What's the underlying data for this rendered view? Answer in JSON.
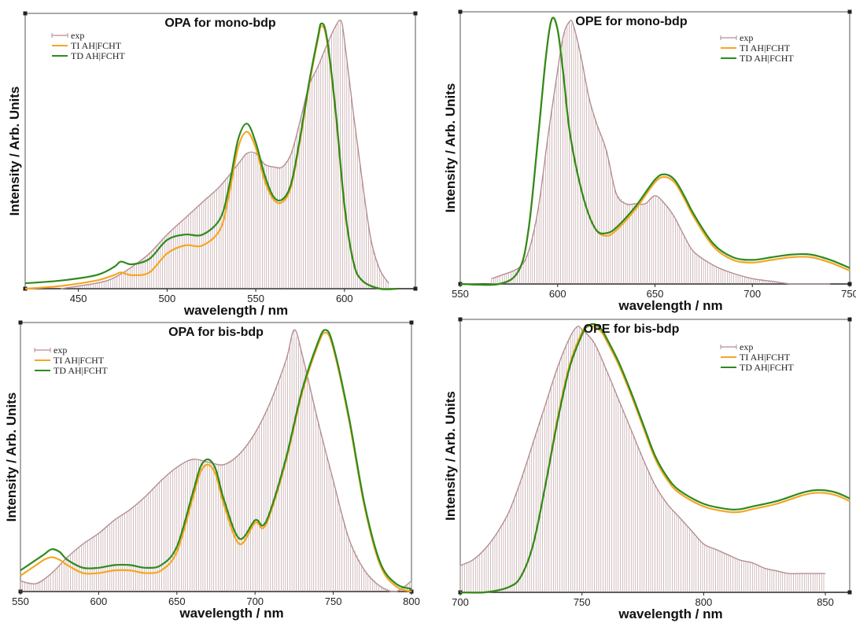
{
  "colors": {
    "exp": "#b48e92",
    "ti": "#f5a623",
    "td": "#2e8b1e"
  },
  "chart_data": [
    {
      "type": "line",
      "title": "OPA for mono-bdp",
      "xlabel": "wavelength / nm",
      "ylabel": "Intensity / Arb. Units",
      "xlim": [
        420,
        640
      ],
      "xticks": [
        450,
        500,
        550,
        600
      ],
      "ylim": [
        0,
        1.0
      ],
      "legend_position": "top-left",
      "series": [
        {
          "name": "exp",
          "style": "sticks",
          "x": [
            440,
            460,
            470,
            480,
            490,
            500,
            510,
            520,
            530,
            540,
            545,
            550,
            555,
            560,
            565,
            570,
            575,
            580,
            585,
            590,
            595,
            598,
            600,
            605,
            610,
            615,
            620,
            625
          ],
          "y": [
            0.0,
            0.02,
            0.04,
            0.08,
            0.13,
            0.2,
            0.26,
            0.32,
            0.38,
            0.46,
            0.5,
            0.5,
            0.46,
            0.45,
            0.45,
            0.5,
            0.62,
            0.75,
            0.82,
            0.9,
            0.97,
            0.99,
            0.92,
            0.65,
            0.4,
            0.18,
            0.07,
            0.02
          ]
        },
        {
          "name": "TI AH|FCHT",
          "x": [
            420,
            440,
            460,
            470,
            474,
            480,
            490,
            500,
            510,
            520,
            530,
            535,
            540,
            545,
            550,
            555,
            560,
            565,
            570,
            575,
            580,
            585,
            587,
            590,
            595,
            600,
            605,
            610,
            620,
            630
          ],
          "y": [
            0.0,
            0.01,
            0.03,
            0.05,
            0.06,
            0.05,
            0.06,
            0.13,
            0.16,
            0.16,
            0.22,
            0.35,
            0.52,
            0.58,
            0.52,
            0.4,
            0.33,
            0.32,
            0.38,
            0.55,
            0.75,
            0.92,
            0.97,
            0.92,
            0.65,
            0.3,
            0.1,
            0.03,
            0.0,
            0.0
          ]
        },
        {
          "name": "TD AH|FCHT",
          "x": [
            420,
            440,
            460,
            470,
            474,
            480,
            490,
            500,
            510,
            520,
            530,
            535,
            540,
            545,
            550,
            555,
            560,
            565,
            570,
            575,
            580,
            585,
            587,
            590,
            595,
            600,
            605,
            610,
            620,
            630
          ],
          "y": [
            0.02,
            0.03,
            0.05,
            0.08,
            0.1,
            0.09,
            0.11,
            0.18,
            0.2,
            0.2,
            0.26,
            0.38,
            0.55,
            0.61,
            0.54,
            0.42,
            0.34,
            0.33,
            0.39,
            0.56,
            0.76,
            0.93,
            0.98,
            0.93,
            0.66,
            0.31,
            0.1,
            0.03,
            0.0,
            0.0
          ]
        }
      ]
    },
    {
      "type": "line",
      "title": "OPE for mono-bdp",
      "xlabel": "wavelength / nm",
      "ylabel": "Intensity / Arb. Units",
      "xlim": [
        550,
        750
      ],
      "xticks": [
        550,
        600,
        650,
        700,
        750
      ],
      "ylim": [
        0,
        1.0
      ],
      "legend_position": "top-right",
      "series": [
        {
          "name": "exp",
          "style": "sticks",
          "x": [
            566,
            570,
            580,
            585,
            590,
            595,
            600,
            603,
            606,
            608,
            612,
            616,
            620,
            625,
            630,
            635,
            640,
            645,
            650,
            655,
            660,
            665,
            670,
            680,
            690,
            700,
            710,
            720,
            730,
            740
          ],
          "y": [
            0.02,
            0.03,
            0.06,
            0.12,
            0.28,
            0.55,
            0.8,
            0.93,
            0.98,
            0.97,
            0.85,
            0.7,
            0.6,
            0.5,
            0.34,
            0.3,
            0.3,
            0.3,
            0.33,
            0.3,
            0.25,
            0.18,
            0.12,
            0.07,
            0.04,
            0.02,
            0.01,
            0.0,
            0.0,
            0.0
          ]
        },
        {
          "name": "TI AH|FCHT",
          "x": [
            550,
            570,
            580,
            585,
            590,
            594,
            597,
            600,
            603,
            606,
            610,
            615,
            620,
            625,
            630,
            640,
            650,
            655,
            660,
            665,
            670,
            680,
            690,
            700,
            710,
            720,
            730,
            740,
            750
          ],
          "y": [
            0.0,
            0.0,
            0.05,
            0.2,
            0.55,
            0.85,
            0.99,
            0.95,
            0.78,
            0.58,
            0.42,
            0.28,
            0.2,
            0.18,
            0.2,
            0.28,
            0.38,
            0.4,
            0.38,
            0.32,
            0.25,
            0.14,
            0.09,
            0.08,
            0.09,
            0.1,
            0.1,
            0.08,
            0.05
          ]
        },
        {
          "name": "TD AH|FCHT",
          "x": [
            550,
            570,
            580,
            585,
            590,
            594,
            597,
            600,
            603,
            606,
            610,
            615,
            620,
            625,
            630,
            640,
            650,
            655,
            660,
            665,
            670,
            680,
            690,
            700,
            710,
            720,
            730,
            740,
            750
          ],
          "y": [
            0.0,
            0.0,
            0.05,
            0.2,
            0.55,
            0.85,
            0.99,
            0.95,
            0.78,
            0.58,
            0.42,
            0.28,
            0.2,
            0.19,
            0.21,
            0.29,
            0.39,
            0.41,
            0.39,
            0.33,
            0.26,
            0.15,
            0.1,
            0.09,
            0.1,
            0.11,
            0.11,
            0.09,
            0.06
          ]
        }
      ]
    },
    {
      "type": "line",
      "title": "OPA for bis-bdp",
      "xlabel": "wavelength / nm",
      "ylabel": "Intensity / Arb. Units",
      "xlim": [
        550,
        800
      ],
      "xticks": [
        550,
        600,
        650,
        700,
        750,
        800
      ],
      "ylim": [
        0,
        1.0
      ],
      "legend_position": "top-left",
      "series": [
        {
          "name": "exp",
          "style": "sticks",
          "x": [
            550,
            560,
            570,
            580,
            590,
            600,
            610,
            620,
            630,
            640,
            650,
            660,
            670,
            680,
            690,
            700,
            710,
            720,
            725,
            730,
            740,
            750,
            760,
            770,
            780,
            790,
            800
          ],
          "y": [
            0.04,
            0.03,
            0.07,
            0.13,
            0.18,
            0.22,
            0.27,
            0.31,
            0.36,
            0.42,
            0.47,
            0.5,
            0.49,
            0.48,
            0.52,
            0.6,
            0.72,
            0.88,
            0.99,
            0.9,
            0.65,
            0.42,
            0.2,
            0.08,
            0.02,
            0.0,
            0.04
          ]
        },
        {
          "name": "TI AH|FCHT",
          "x": [
            550,
            560,
            565,
            570,
            575,
            580,
            590,
            600,
            610,
            620,
            630,
            640,
            650,
            660,
            665,
            670,
            675,
            680,
            690,
            700,
            705,
            710,
            720,
            730,
            740,
            745,
            750,
            760,
            770,
            780,
            790,
            800
          ],
          "y": [
            0.06,
            0.1,
            0.12,
            0.13,
            0.12,
            0.1,
            0.07,
            0.07,
            0.08,
            0.08,
            0.07,
            0.08,
            0.15,
            0.35,
            0.45,
            0.48,
            0.44,
            0.33,
            0.18,
            0.26,
            0.24,
            0.3,
            0.5,
            0.75,
            0.93,
            0.98,
            0.92,
            0.65,
            0.32,
            0.1,
            0.02,
            0.0
          ]
        },
        {
          "name": "TD AH|FCHT",
          "x": [
            550,
            560,
            565,
            570,
            575,
            580,
            590,
            600,
            610,
            620,
            630,
            640,
            650,
            660,
            665,
            670,
            675,
            680,
            690,
            700,
            705,
            710,
            720,
            730,
            740,
            745,
            750,
            760,
            770,
            780,
            790,
            800
          ],
          "y": [
            0.08,
            0.12,
            0.14,
            0.16,
            0.15,
            0.12,
            0.09,
            0.09,
            0.1,
            0.1,
            0.09,
            0.1,
            0.17,
            0.37,
            0.47,
            0.5,
            0.46,
            0.35,
            0.2,
            0.27,
            0.25,
            0.31,
            0.51,
            0.76,
            0.94,
            0.99,
            0.93,
            0.66,
            0.33,
            0.11,
            0.03,
            0.01
          ]
        }
      ]
    },
    {
      "type": "line",
      "title": "OPE for bis-bdp",
      "xlabel": "wavelength / nm",
      "ylabel": "Intensity / Arb. Units",
      "xlim": [
        700,
        860
      ],
      "xticks": [
        700,
        750,
        800,
        850
      ],
      "ylim": [
        0,
        1.0
      ],
      "legend_position": "top-right",
      "series": [
        {
          "name": "exp",
          "style": "sticks",
          "x": [
            700,
            705,
            710,
            715,
            720,
            725,
            730,
            735,
            740,
            745,
            748,
            750,
            755,
            760,
            765,
            770,
            775,
            780,
            785,
            790,
            795,
            800,
            805,
            810,
            815,
            820,
            825,
            830,
            835,
            840,
            845,
            850
          ],
          "y": [
            0.1,
            0.12,
            0.16,
            0.22,
            0.3,
            0.42,
            0.56,
            0.7,
            0.84,
            0.95,
            0.99,
            0.98,
            0.93,
            0.83,
            0.72,
            0.61,
            0.5,
            0.4,
            0.33,
            0.28,
            0.23,
            0.18,
            0.16,
            0.14,
            0.12,
            0.11,
            0.09,
            0.08,
            0.07,
            0.07,
            0.07,
            0.07
          ]
        },
        {
          "name": "TI AH|FCHT",
          "x": [
            700,
            710,
            720,
            725,
            730,
            735,
            740,
            745,
            750,
            752,
            755,
            758,
            760,
            765,
            770,
            775,
            780,
            785,
            790,
            800,
            810,
            815,
            820,
            830,
            840,
            845,
            850,
            855,
            860
          ],
          "y": [
            0.0,
            0.0,
            0.02,
            0.06,
            0.18,
            0.4,
            0.65,
            0.85,
            0.97,
            0.99,
            0.99,
            0.97,
            0.94,
            0.85,
            0.74,
            0.62,
            0.5,
            0.42,
            0.37,
            0.32,
            0.3,
            0.3,
            0.31,
            0.33,
            0.36,
            0.37,
            0.37,
            0.36,
            0.34
          ]
        },
        {
          "name": "TD AH|FCHT",
          "x": [
            700,
            710,
            720,
            725,
            730,
            735,
            740,
            745,
            750,
            752,
            755,
            758,
            760,
            765,
            770,
            775,
            780,
            785,
            790,
            800,
            810,
            815,
            820,
            830,
            840,
            845,
            850,
            855,
            860
          ],
          "y": [
            0.0,
            0.0,
            0.02,
            0.06,
            0.18,
            0.4,
            0.64,
            0.84,
            0.96,
            0.99,
            1.0,
            0.98,
            0.95,
            0.86,
            0.75,
            0.63,
            0.51,
            0.43,
            0.38,
            0.33,
            0.31,
            0.31,
            0.32,
            0.34,
            0.37,
            0.38,
            0.38,
            0.37,
            0.35
          ]
        }
      ]
    }
  ]
}
